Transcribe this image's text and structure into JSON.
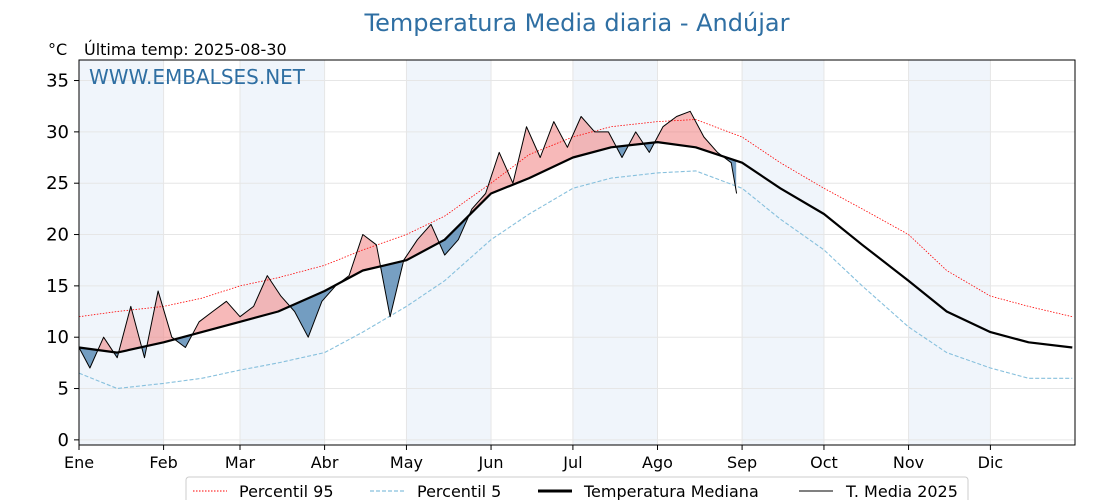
{
  "title": "Temperatura Media diaria - Andújar",
  "unit_label": "°C",
  "last_temp_label": "Última temp: 2025-08-30",
  "watermark": "WWW.EMBALSES.NET",
  "colors": {
    "title": "#2f6fa3",
    "p95": "#ff0000",
    "p5": "#87c0dd",
    "median": "#000000",
    "media2025": "#000000",
    "fill_above": "#f08080",
    "fill_below": "#4a7fae",
    "band": "#f0f5fb"
  },
  "chart_data": {
    "type": "line",
    "title": "Temperatura Media diaria - Andújar",
    "ylabel": "°C",
    "ylim": [
      -0.5,
      37
    ],
    "yticks": [
      0,
      5,
      10,
      15,
      20,
      25,
      30,
      35
    ],
    "months": [
      "Ene",
      "Feb",
      "Mar",
      "Abr",
      "May",
      "Jun",
      "Jul",
      "Ago",
      "Sep",
      "Oct",
      "Nov",
      "Dic"
    ],
    "month_start_days": [
      1,
      32,
      60,
      91,
      121,
      152,
      182,
      213,
      244,
      274,
      305,
      335
    ],
    "grid": true,
    "legend_position": "bottom",
    "series": [
      {
        "name": "Percentil 95",
        "style": "dotted",
        "x": [
          1,
          15,
          32,
          46,
          60,
          74,
          91,
          105,
          121,
          135,
          152,
          166,
          182,
          196,
          213,
          227,
          244,
          258,
          274,
          288,
          305,
          319,
          335,
          349,
          365
        ],
        "values": [
          12,
          12.5,
          13,
          13.8,
          15,
          15.8,
          17,
          18.5,
          20,
          21.8,
          25,
          27.8,
          29.5,
          30.5,
          31,
          31.2,
          29.5,
          27,
          24.5,
          22.5,
          20,
          16.5,
          14,
          13,
          12
        ]
      },
      {
        "name": "Percentil 5",
        "style": "dashed",
        "x": [
          1,
          15,
          32,
          46,
          60,
          74,
          91,
          105,
          121,
          135,
          152,
          166,
          182,
          196,
          213,
          227,
          244,
          258,
          274,
          288,
          305,
          319,
          335,
          349,
          365
        ],
        "values": [
          6.5,
          5,
          5.5,
          6,
          6.8,
          7.5,
          8.5,
          10.5,
          13,
          15.5,
          19.5,
          22,
          24.5,
          25.5,
          26,
          26.2,
          24.5,
          21.5,
          18.5,
          15,
          11,
          8.5,
          7,
          6,
          6
        ]
      },
      {
        "name": "Temperatura Mediana",
        "style": "solid-thick",
        "x": [
          1,
          15,
          32,
          46,
          60,
          74,
          91,
          105,
          121,
          135,
          152,
          166,
          182,
          196,
          213,
          227,
          244,
          258,
          274,
          288,
          305,
          319,
          335,
          349,
          365
        ],
        "values": [
          9,
          8.5,
          9.5,
          10.5,
          11.5,
          12.5,
          14.5,
          16.5,
          17.5,
          19.5,
          24,
          25.5,
          27.5,
          28.5,
          29,
          28.5,
          27,
          24.5,
          22,
          19,
          15.5,
          12.5,
          10.5,
          9.5,
          9
        ]
      },
      {
        "name": "T. Media 2025",
        "style": "solid-thin",
        "x": [
          1,
          5,
          10,
          15,
          20,
          25,
          30,
          35,
          40,
          45,
          50,
          55,
          60,
          65,
          70,
          75,
          80,
          85,
          90,
          95,
          100,
          105,
          110,
          115,
          120,
          125,
          130,
          135,
          140,
          145,
          150,
          155,
          160,
          165,
          170,
          175,
          180,
          185,
          190,
          195,
          200,
          205,
          210,
          215,
          220,
          225,
          230,
          235,
          240,
          242
        ],
        "values": [
          9,
          7,
          10,
          8,
          13,
          8,
          14.5,
          10,
          9,
          11.5,
          12.5,
          13.5,
          12,
          13,
          16,
          14,
          12.5,
          10,
          13.5,
          15,
          16,
          20,
          19,
          12,
          17.5,
          19.5,
          21,
          18,
          19.5,
          22.5,
          24,
          28,
          25,
          30.5,
          27.5,
          31,
          28.5,
          31.5,
          30,
          30,
          27.5,
          30,
          28,
          30.5,
          31.5,
          32,
          29.5,
          28,
          27,
          24
        ]
      }
    ]
  },
  "legend": [
    {
      "label": "Percentil 95"
    },
    {
      "label": "Percentil 5"
    },
    {
      "label": "Temperatura Mediana"
    },
    {
      "label": "T. Media 2025"
    }
  ]
}
